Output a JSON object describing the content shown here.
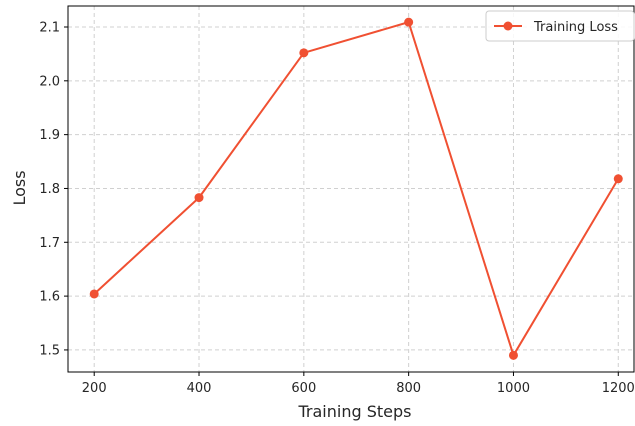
{
  "chart_data": {
    "type": "line",
    "title": "",
    "xlabel": "Training Steps",
    "ylabel": "Loss",
    "x": [
      200,
      400,
      600,
      800,
      1000,
      1200
    ],
    "series": [
      {
        "name": "Training Loss",
        "color": "#f05032",
        "values": [
          1.604,
          1.783,
          2.052,
          2.109,
          1.49,
          1.818
        ]
      }
    ],
    "xticks": [
      200,
      400,
      600,
      800,
      1000,
      1200
    ],
    "yticks": [
      1.5,
      1.6,
      1.7,
      1.8,
      1.9,
      2.0,
      2.1
    ],
    "xlim": [
      150,
      1230
    ],
    "ylim": [
      1.459,
      2.139
    ],
    "grid": true,
    "legend_position": "top-right",
    "marker": "circle"
  }
}
